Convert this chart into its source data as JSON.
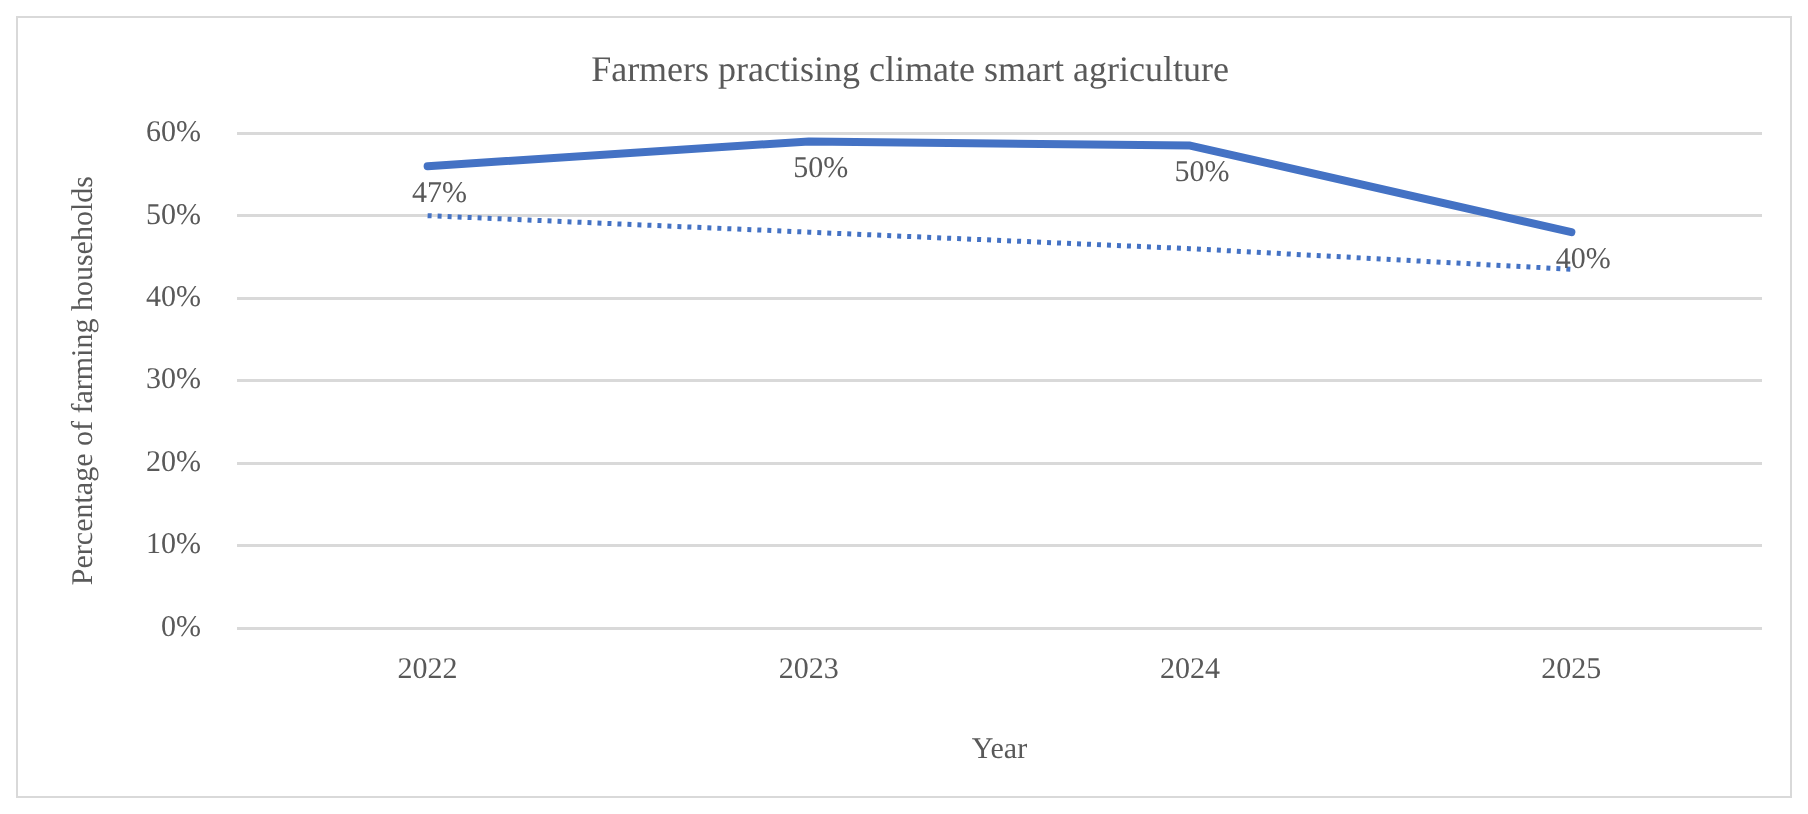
{
  "chart_data": {
    "type": "line",
    "title": "Farmers practising climate smart agriculture",
    "xlabel": "Year",
    "ylabel": "Percentage of farming households",
    "categories": [
      "2022",
      "2023",
      "2024",
      "2025"
    ],
    "series": [
      {
        "color": "#4472c4",
        "values": [
          56,
          59,
          58.5,
          48
        ],
        "line_style": "solid"
      },
      {
        "color": "#4472c4",
        "values": [
          50,
          48,
          46,
          43.5
        ],
        "line_style": "dotted"
      }
    ],
    "annotations": [
      {
        "text": "47%",
        "x": "2022",
        "y": 56
      },
      {
        "text": "50%",
        "x": "2023",
        "y": 59
      },
      {
        "text": "50%",
        "x": "2024",
        "y": 58.5
      },
      {
        "text": "40%",
        "x": "2025",
        "y": 48
      }
    ],
    "ylim": [
      0,
      60
    ],
    "yticks": [
      {
        "value": 0,
        "label": "0%"
      },
      {
        "value": 10,
        "label": "10%"
      },
      {
        "value": 20,
        "label": "20%"
      },
      {
        "value": 30,
        "label": "30%"
      },
      {
        "value": 40,
        "label": "40%"
      },
      {
        "value": 50,
        "label": "50%"
      },
      {
        "value": 60,
        "label": "60%"
      }
    ],
    "grid": "y",
    "legend": false,
    "marker": "none"
  }
}
